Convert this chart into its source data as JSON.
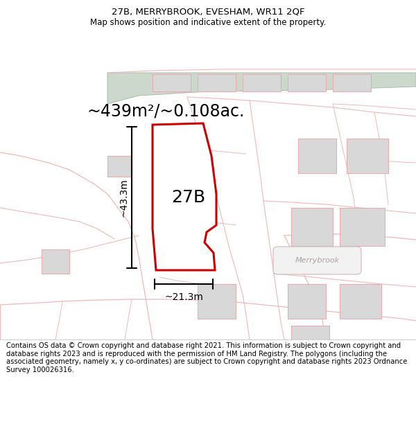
{
  "title_line1": "27B, MERRYBROOK, EVESHAM, WR11 2QF",
  "title_line2": "Map shows position and indicative extent of the property.",
  "area_text": "~439m²/~0.108ac.",
  "label_27B": "27B",
  "label_width": "~21.3m",
  "label_height": "~43.3m",
  "label_merrybrook": "Merrybrook",
  "footer_text": "Contains OS data © Crown copyright and database right 2021. This information is subject to Crown copyright and database rights 2023 and is reproduced with the permission of HM Land Registry. The polygons (including the associated geometry, namely x, y co-ordinates) are subject to Crown copyright and database rights 2023 Ordnance Survey 100026316.",
  "bg_color": "#ffffff",
  "map_bg": "#faf5f5",
  "road_color": "#f0b8b8",
  "property_line_color": "#cc0000",
  "property_fill": "#ffffff",
  "building_fill": "#d8d8d8",
  "building_edge": "#e8a8a8",
  "green_fill": "#ccd8cc",
  "green_edge": "#aabcaa",
  "dim_line_color": "#000000",
  "text_color": "#000000",
  "footer_fontsize": 7.2,
  "title1_fontsize": 9.5,
  "title2_fontsize": 8.5,
  "area_fontsize": 17,
  "label_fontsize": 18,
  "dim_fontsize": 10,
  "merrybrook_fontsize": 8
}
